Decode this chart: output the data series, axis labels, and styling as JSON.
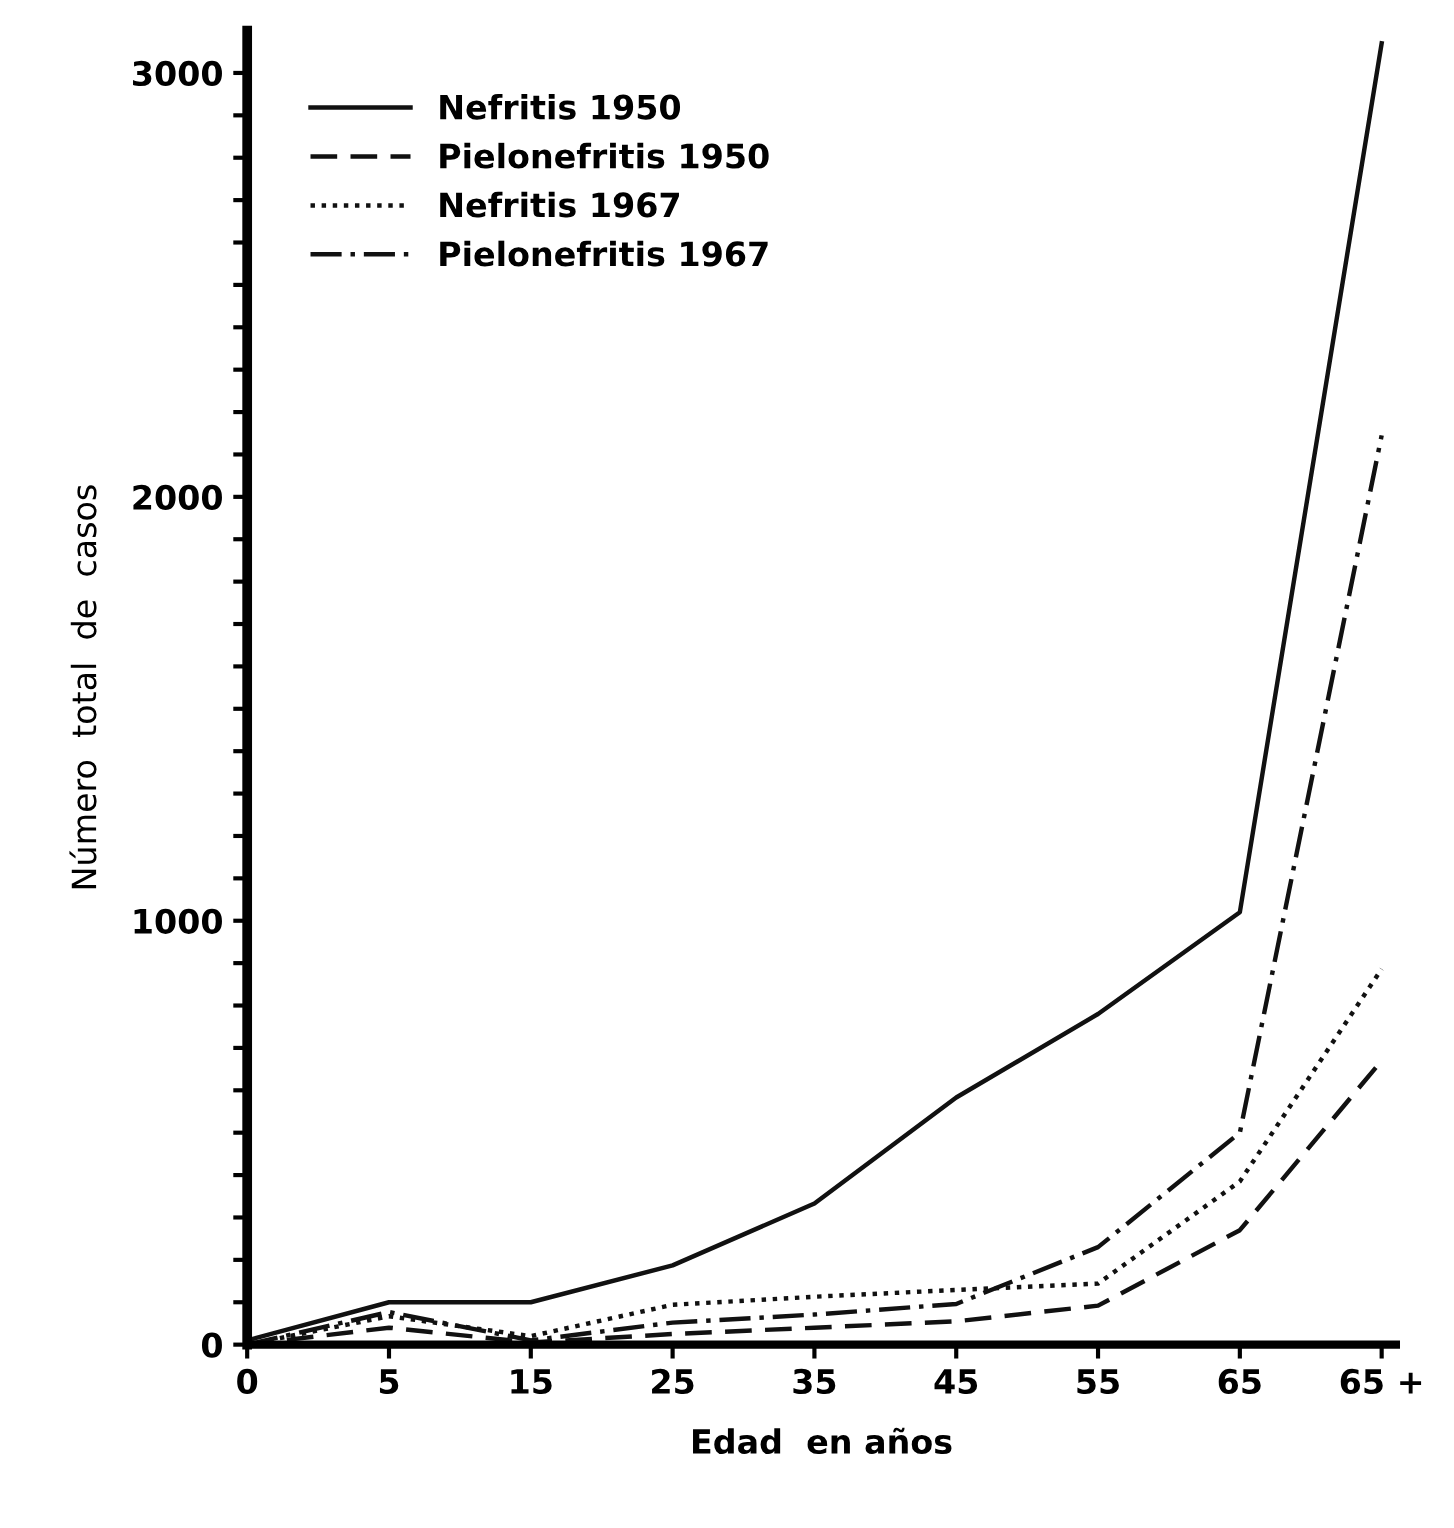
{
  "chart_data": {
    "type": "line",
    "xlabel": "Edad  en años",
    "ylabel": "Número  total  de  casos",
    "categories": [
      "0",
      "5",
      "15",
      "25",
      "35",
      "45",
      "55",
      "65",
      "65 +"
    ],
    "ylim": [
      0,
      3100
    ],
    "yticks": [
      0,
      {
        "value": 100,
        "label": null
      },
      {
        "value": 200,
        "label": null
      },
      {
        "value": 300,
        "label": null
      },
      {
        "value": 400,
        "label": null
      },
      {
        "value": 500,
        "label": null
      },
      {
        "value": 600,
        "label": null
      },
      {
        "value": 700,
        "label": null
      },
      {
        "value": 800,
        "label": null
      },
      {
        "value": 900,
        "label": null
      },
      1000,
      {
        "value": 1100,
        "label": null
      },
      {
        "value": 1200,
        "label": null
      },
      {
        "value": 1300,
        "label": null
      },
      {
        "value": 1400,
        "label": null
      },
      {
        "value": 1500,
        "label": null
      },
      {
        "value": 1600,
        "label": null
      },
      {
        "value": 1700,
        "label": null
      },
      {
        "value": 1800,
        "label": null
      },
      {
        "value": 1900,
        "label": null
      },
      2000,
      {
        "value": 2100,
        "label": null
      },
      {
        "value": 2200,
        "label": null
      },
      {
        "value": 2300,
        "label": null
      },
      {
        "value": 2400,
        "label": null
      },
      {
        "value": 2500,
        "label": null
      },
      {
        "value": 2600,
        "label": null
      },
      {
        "value": 2700,
        "label": null
      },
      {
        "value": 2800,
        "label": null
      },
      {
        "value": 2900,
        "label": null
      },
      3000
    ],
    "grid": false,
    "legend": "top left",
    "marker": "none",
    "series": [
      {
        "name": "Nefritis 1950",
        "color": "#111111",
        "line_style": "solid",
        "values": [
          10,
          100,
          100,
          187,
          333,
          583,
          780,
          1020,
          3070
        ]
      },
      {
        "name": "Pielonefritis 1950",
        "color": "#111111",
        "line_style": "dashed",
        "values": [
          0,
          40,
          5,
          25,
          40,
          55,
          92,
          270,
          670
        ]
      },
      {
        "name": "Nefritis 1967",
        "color": "#111111",
        "line_style": "dotted",
        "values": [
          0,
          67,
          20,
          94,
          113,
          129,
          144,
          385,
          886
        ]
      },
      {
        "name": "Pielonefritis 1967",
        "color": "#111111",
        "line_style": "dashdot",
        "values": [
          0,
          77,
          10,
          52,
          71,
          96,
          230,
          500,
          2145
        ]
      }
    ]
  }
}
